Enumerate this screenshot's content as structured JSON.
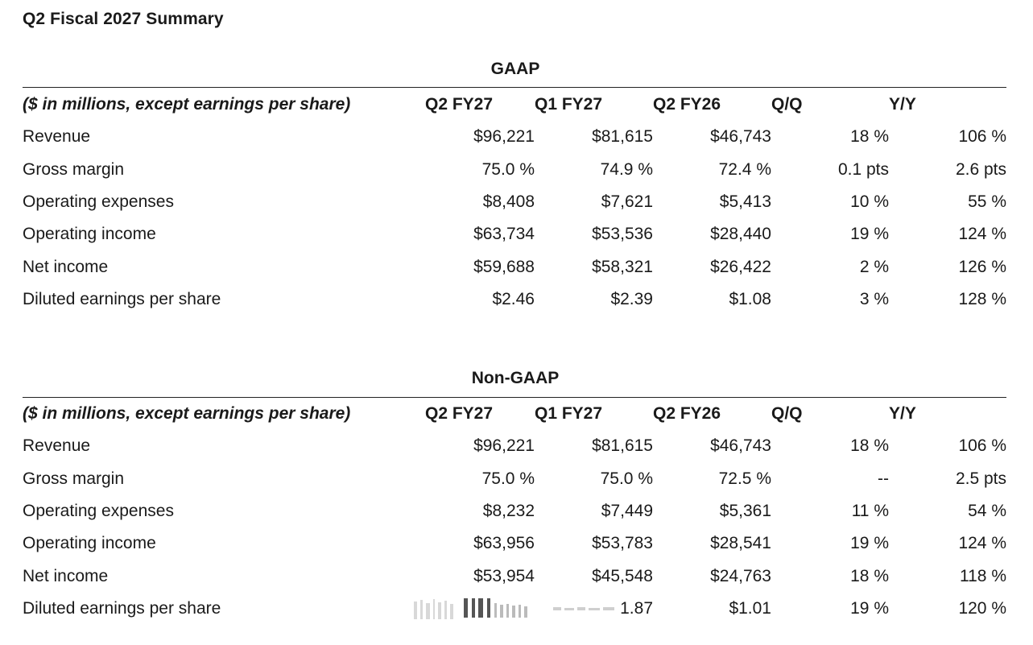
{
  "page": {
    "title": "Q2 Fiscal 2027 Summary"
  },
  "columns": {
    "units": "($ in millions, except earnings per share)",
    "q2fy27": "Q2 FY27",
    "q1fy27": "Q1 FY27",
    "q2fy26": "Q2 FY26",
    "qq": "Q/Q",
    "yy": "Y/Y"
  },
  "gaap": {
    "heading": "GAAP",
    "rows": [
      {
        "label": "Revenue",
        "q2fy27": "$96,221",
        "q1fy27": "$81,615",
        "q2fy26": "$46,743",
        "qq": "18 %",
        "yy": "106 %"
      },
      {
        "label": "Gross margin",
        "q2fy27": "75.0 %",
        "q1fy27": "74.9 %",
        "q2fy26": "72.4 %",
        "qq": "0.1 pts",
        "yy": "2.6 pts"
      },
      {
        "label": "Operating expenses",
        "q2fy27": "$8,408",
        "q1fy27": "$7,621",
        "q2fy26": "$5,413",
        "qq": "10 %",
        "yy": "55 %"
      },
      {
        "label": "Operating income",
        "q2fy27": "$63,734",
        "q1fy27": "$53,536",
        "q2fy26": "$28,440",
        "qq": "19 %",
        "yy": "124 %"
      },
      {
        "label": "Net income",
        "q2fy27": "$59,688",
        "q1fy27": "$58,321",
        "q2fy26": "$26,422",
        "qq": "2 %",
        "yy": "126 %"
      },
      {
        "label": "Diluted earnings per share",
        "q2fy27": "$2.46",
        "q1fy27": "$2.39",
        "q2fy26": "$1.08",
        "qq": "3 %",
        "yy": "128 %"
      }
    ]
  },
  "nongaap": {
    "heading": "Non-GAAP",
    "rows": [
      {
        "label": "Revenue",
        "q2fy27": "$96,221",
        "q1fy27": "$81,615",
        "q2fy26": "$46,743",
        "qq": "18 %",
        "yy": "106 %"
      },
      {
        "label": "Gross margin",
        "q2fy27": "75.0 %",
        "q1fy27": "75.0 %",
        "q2fy26": "72.5 %",
        "qq": "--",
        "yy": "2.5 pts"
      },
      {
        "label": "Operating expenses",
        "q2fy27": "$8,232",
        "q1fy27": "$7,449",
        "q2fy26": "$5,361",
        "qq": "11 %",
        "yy": "54 %"
      },
      {
        "label": "Operating income",
        "q2fy27": "$63,956",
        "q1fy27": "$53,783",
        "q2fy26": "$28,541",
        "qq": "19 %",
        "yy": "124 %"
      },
      {
        "label": "Net income",
        "q2fy27": "$53,954",
        "q1fy27": "$45,548",
        "q2fy26": "$24,763",
        "qq": "18 %",
        "yy": "118 %"
      },
      {
        "label": "Diluted earnings per share",
        "q1fy27": "1.87",
        "q2fy26": "$1.01",
        "qq": "19 %",
        "yy": "120 %"
      }
    ]
  },
  "watermark": {
    "icon": "watermark-barcode-icon",
    "color": "#555555"
  }
}
